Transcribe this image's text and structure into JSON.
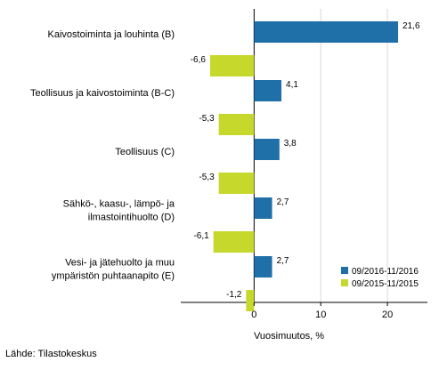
{
  "chart_data": {
    "type": "bar",
    "orientation": "horizontal",
    "categories": [
      [
        "Kaivostoiminta ja louhinta (B)"
      ],
      [
        "Teollisuus ja kaivostoiminta (B-C)"
      ],
      [
        "Teollisuus (C)"
      ],
      [
        "Sähkö-, kaasu-, lämpö- ja",
        "ilmastointihuolto (D)"
      ],
      [
        "Vesi- ja jätehuolto ja muu",
        "ympäristön puhtaanapito (E)"
      ]
    ],
    "series": [
      {
        "name": "09/2016-11/2016",
        "color": "#1f6fa8",
        "values": [
          21.6,
          4.1,
          3.8,
          2.7,
          2.7
        ],
        "labels": [
          "21,6",
          "4,1",
          "3,8",
          "2,7",
          "2,7"
        ]
      },
      {
        "name": "09/2015-11/2015",
        "color": "#c6d82b",
        "values": [
          -6.6,
          -5.3,
          -5.3,
          -6.1,
          -1.2
        ],
        "labels": [
          "-6,6",
          "-5,3",
          "-5,3",
          "-6,1",
          "-1,2"
        ]
      }
    ],
    "xlim": [
      -11,
      26
    ],
    "xticks": [
      0,
      10,
      20
    ],
    "xtick_labels": [
      "0",
      "10",
      "20"
    ],
    "xlabel": "Vuosimuutos, %",
    "grid": "vertical",
    "legend_position": "bottom-right"
  },
  "source": "Lähde: Tilastokeskus"
}
